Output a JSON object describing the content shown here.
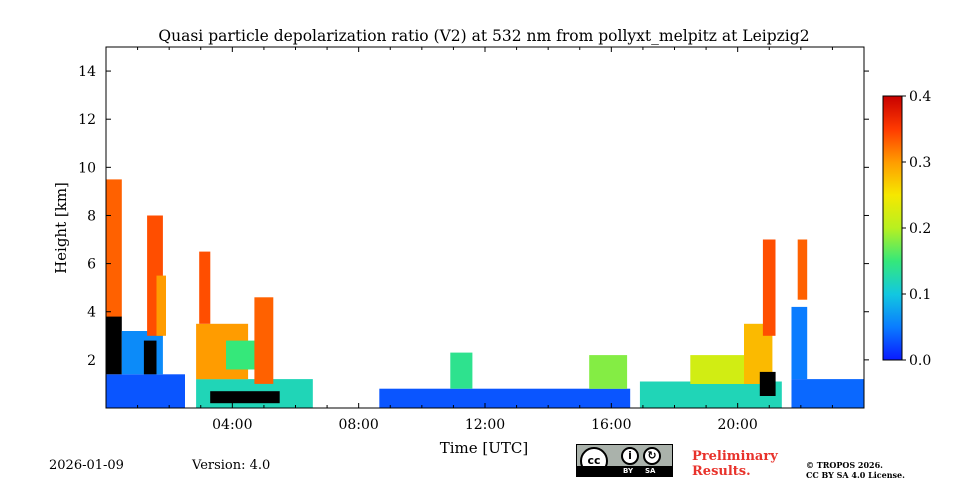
{
  "chart_data": {
    "type": "heatmap",
    "title": "Quasi particle depolarization ratio (V2) at 532 nm from pollyxt_melpitz at Leipzig2",
    "xlabel": "Time [UTC]",
    "ylabel": "Height [km]",
    "xlim_hours": [
      0,
      24
    ],
    "ylim_km": [
      0,
      15
    ],
    "x_ticks": [
      {
        "value": 4,
        "label": "04:00"
      },
      {
        "value": 8,
        "label": "08:00"
      },
      {
        "value": 12,
        "label": "12:00"
      },
      {
        "value": 16,
        "label": "16:00"
      },
      {
        "value": 20,
        "label": "20:00"
      }
    ],
    "y_ticks": [
      {
        "value": 2,
        "label": "2"
      },
      {
        "value": 4,
        "label": "4"
      },
      {
        "value": 6,
        "label": "6"
      },
      {
        "value": 8,
        "label": "8"
      },
      {
        "value": 10,
        "label": "10"
      },
      {
        "value": 12,
        "label": "12"
      },
      {
        "value": 14,
        "label": "14"
      }
    ],
    "colorbar": {
      "range": [
        0,
        0.4
      ],
      "colormap": [
        "#0a1aff",
        "#0a7cff",
        "#12c8e0",
        "#35e87a",
        "#b8f020",
        "#f6e800",
        "#ff9c00",
        "#ff3a00",
        "#c80000"
      ],
      "ticks": [
        {
          "value": 0.0,
          "label": "0.0"
        },
        {
          "value": 0.1,
          "label": "0.1"
        },
        {
          "value": 0.2,
          "label": "0.2"
        },
        {
          "value": 0.3,
          "label": "0.3"
        },
        {
          "value": 0.4,
          "label": "0.4"
        }
      ]
    },
    "data_gaps_hours": [
      [
        2.5,
        2.85
      ],
      [
        6.55,
        6.8
      ],
      [
        8.6,
        8.65
      ],
      [
        16.6,
        16.9
      ],
      [
        21.4,
        21.7
      ]
    ],
    "regions": [
      {
        "t0": 0.0,
        "t1": 2.5,
        "h0": 0.0,
        "h1": 1.4,
        "value": 0.03
      },
      {
        "t0": 0.0,
        "t1": 0.5,
        "h0": 1.4,
        "h1": 3.8,
        "value": -1
      },
      {
        "t0": 0.0,
        "t1": 0.5,
        "h0": 3.8,
        "h1": 9.5,
        "value": 0.33
      },
      {
        "t0": 0.5,
        "t1": 1.8,
        "h0": 1.4,
        "h1": 3.2,
        "value": 0.06
      },
      {
        "t0": 1.2,
        "t1": 1.6,
        "h0": 1.4,
        "h1": 2.8,
        "value": -1
      },
      {
        "t0": 1.3,
        "t1": 1.8,
        "h0": 3.0,
        "h1": 8.0,
        "value": 0.34
      },
      {
        "t0": 1.6,
        "t1": 1.9,
        "h0": 3.0,
        "h1": 5.5,
        "value": 0.3
      },
      {
        "t0": 2.85,
        "t1": 6.55,
        "h0": 0.0,
        "h1": 1.2,
        "value": 0.12
      },
      {
        "t0": 3.3,
        "t1": 5.5,
        "h0": 0.2,
        "h1": 0.7,
        "value": -1
      },
      {
        "t0": 2.85,
        "t1": 4.5,
        "h0": 1.2,
        "h1": 3.5,
        "value": 0.3
      },
      {
        "t0": 3.8,
        "t1": 4.9,
        "h0": 1.6,
        "h1": 2.8,
        "value": 0.15
      },
      {
        "t0": 4.7,
        "t1": 5.3,
        "h0": 1.0,
        "h1": 4.6,
        "value": 0.33
      },
      {
        "t0": 2.95,
        "t1": 3.3,
        "h0": 3.5,
        "h1": 6.5,
        "value": 0.34
      },
      {
        "t0": 8.65,
        "t1": 16.6,
        "h0": 0.0,
        "h1": 0.8,
        "value": 0.03
      },
      {
        "t0": 10.9,
        "t1": 11.6,
        "h0": 0.8,
        "h1": 2.3,
        "value": 0.14
      },
      {
        "t0": 15.3,
        "t1": 16.5,
        "h0": 0.8,
        "h1": 2.2,
        "value": 0.18
      },
      {
        "t0": 16.9,
        "t1": 21.4,
        "h0": 0.0,
        "h1": 1.1,
        "value": 0.12
      },
      {
        "t0": 18.5,
        "t1": 20.2,
        "h0": 1.0,
        "h1": 2.2,
        "value": 0.22
      },
      {
        "t0": 20.2,
        "t1": 21.1,
        "h0": 1.0,
        "h1": 3.5,
        "value": 0.28
      },
      {
        "t0": 20.8,
        "t1": 21.2,
        "h0": 3.0,
        "h1": 7.0,
        "value": 0.34
      },
      {
        "t0": 20.7,
        "t1": 21.2,
        "h0": 0.5,
        "h1": 1.5,
        "value": -1
      },
      {
        "t0": 21.7,
        "t1": 24.0,
        "h0": 0.0,
        "h1": 1.2,
        "value": 0.04
      },
      {
        "t0": 21.7,
        "t1": 22.2,
        "h0": 1.2,
        "h1": 4.2,
        "value": 0.05
      },
      {
        "t0": 21.9,
        "t1": 22.2,
        "h0": 4.5,
        "h1": 7.0,
        "value": 0.33
      }
    ]
  },
  "footer": {
    "date": "2026-01-09",
    "version": "Version: 4.0",
    "preliminary_line1": "Preliminary",
    "preliminary_line2": "Results.",
    "copyright_line1": "© TROPOS 2026.",
    "copyright_line2": "CC BY SA 4.0 License.",
    "cc_main": "cc",
    "cc_by": "BY",
    "cc_sa": "SA"
  }
}
